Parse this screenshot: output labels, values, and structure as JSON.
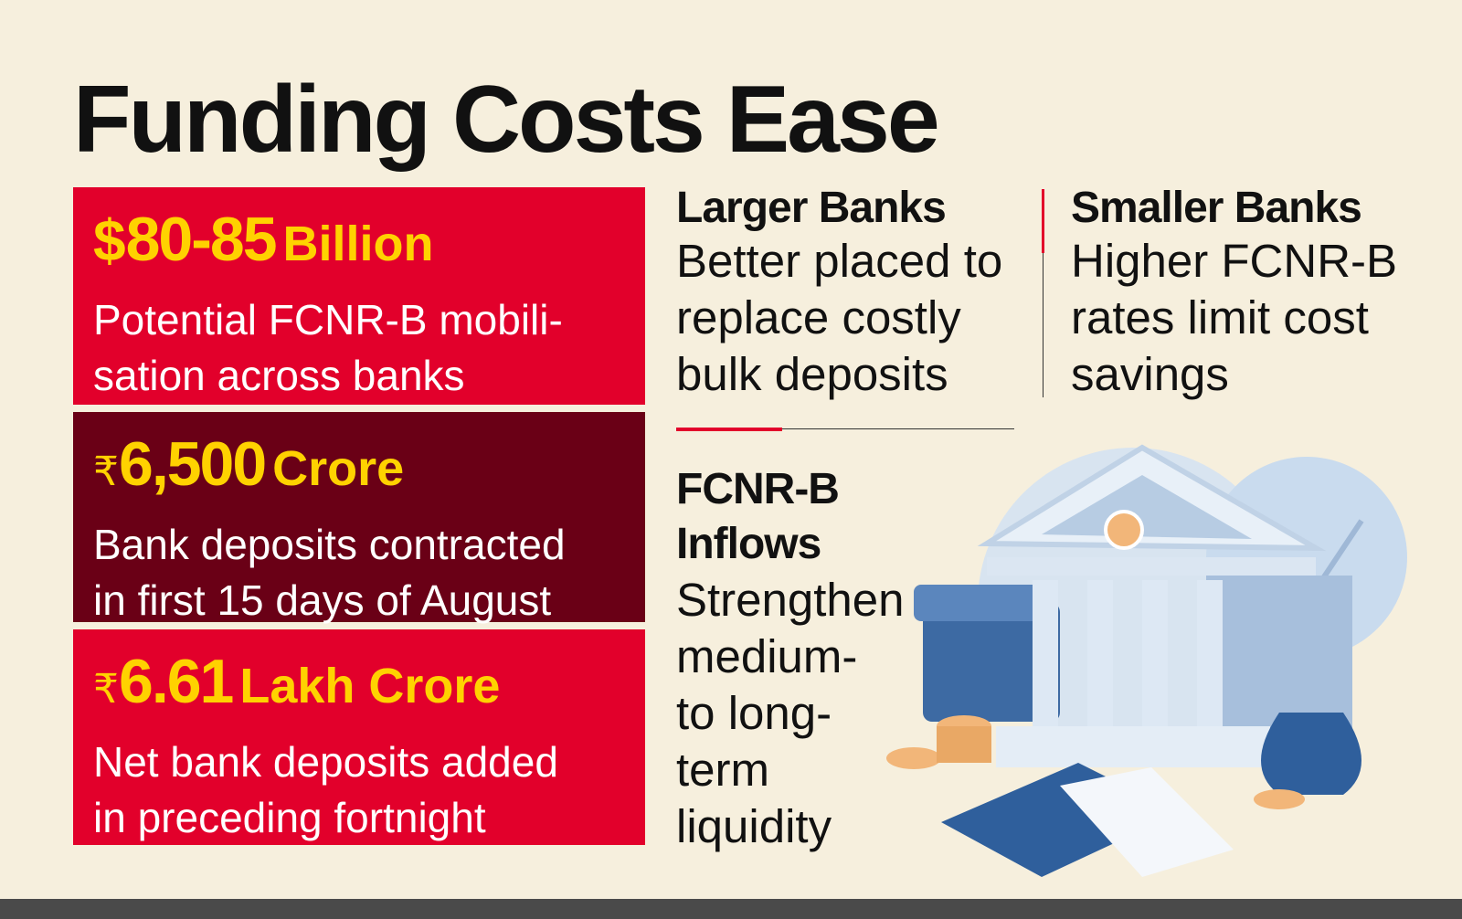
{
  "title": "Funding Costs Ease",
  "stats": [
    {
      "prefix": "$",
      "amount": "80-85",
      "unit": "Billion",
      "description": [
        "Potential FCNR-B mobili-",
        "sation across banks"
      ]
    },
    {
      "prefix": "₹",
      "amount": "6,500",
      "unit": "Crore",
      "description": [
        "Bank deposits contracted",
        "in first 15 days of August"
      ]
    },
    {
      "prefix": "₹",
      "amount": "6.61",
      "unit": "Lakh Crore",
      "description": [
        "Net bank deposits added",
        "in preceding fortnight"
      ]
    }
  ],
  "larger_banks": {
    "heading": "Larger Banks",
    "text": [
      "Better placed to",
      "replace costly",
      "bulk deposits"
    ]
  },
  "smaller_banks": {
    "heading": "Smaller Banks",
    "text": [
      "Higher FCNR-B",
      "rates limit cost",
      "savings"
    ]
  },
  "fcnr_inflows": {
    "heading": [
      "FCNR-B",
      "Inflows"
    ],
    "text": [
      "Strengthen",
      "medium-",
      "to long-",
      "term",
      "liquidity"
    ]
  }
}
